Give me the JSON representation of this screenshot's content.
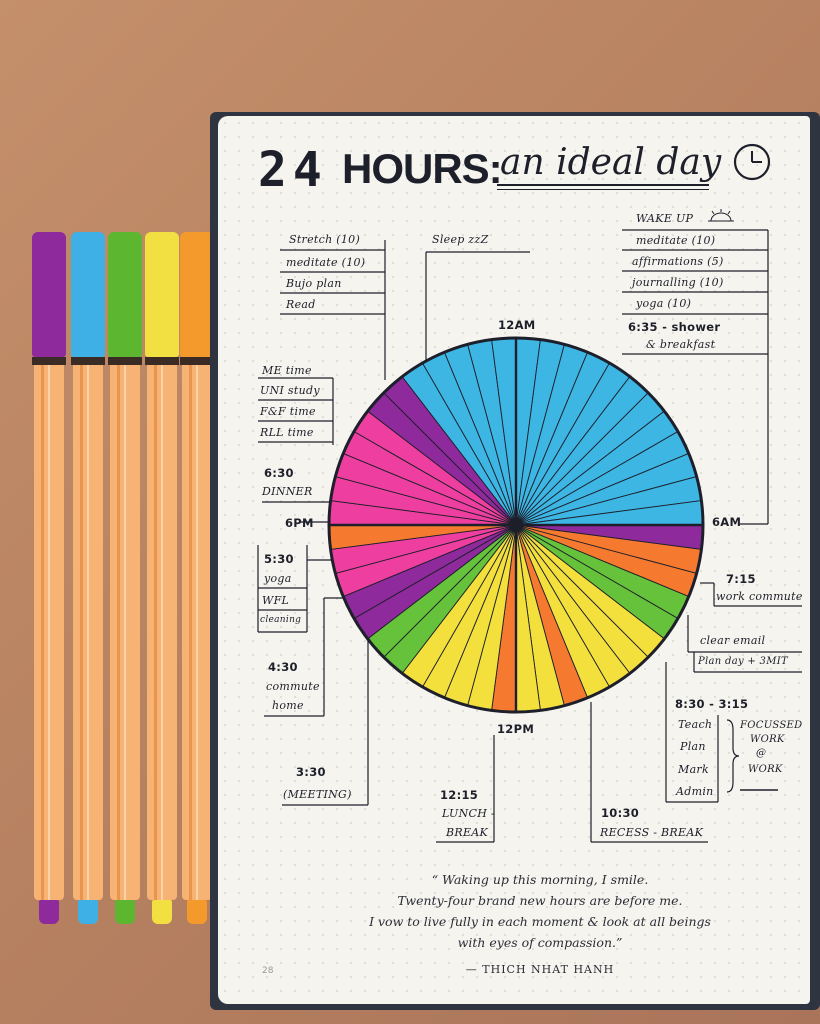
{
  "pens": [
    {
      "name": "purple",
      "color": "#8e2a9c"
    },
    {
      "name": "blue",
      "color": "#3fb0e6"
    },
    {
      "name": "green",
      "color": "#5cb630"
    },
    {
      "name": "yellow",
      "color": "#f2e042"
    },
    {
      "name": "orange",
      "color": "#f49a2c"
    }
  ],
  "title": {
    "number": "24",
    "hours": "HOURS:",
    "subtitle": "an ideal day",
    "icon": "clock-icon"
  },
  "hour_labels": {
    "midnight": "12AM",
    "morning": "6AM",
    "noon": "12PM",
    "evening": "6PM"
  },
  "chart_data": {
    "type": "pie",
    "slices_clockwise_from_midnight": [
      {
        "color": "#3db6e4",
        "count": 12
      },
      {
        "color": "#8e2a9c",
        "count": 1
      },
      {
        "color": "#f57a2f",
        "count": 2
      },
      {
        "color": "#66c23a",
        "count": 2
      },
      {
        "color": "#f3e03d",
        "count": 4
      },
      {
        "color": "#f57a2f",
        "count": 1
      },
      {
        "color": "#f3e03d",
        "count": 2
      },
      {
        "color": "#f57a2f",
        "count": 1
      },
      {
        "color": "#f3e03d",
        "count": 4
      },
      {
        "color": "#66c23a",
        "count": 2
      },
      {
        "color": "#8e2a9c",
        "count": 2
      },
      {
        "color": "#ee3fa0",
        "count": 2
      },
      {
        "color": "#f57a2f",
        "count": 1
      },
      {
        "color": "#ee3fa0",
        "count": 5
      },
      {
        "color": "#8e2a9c",
        "count": 2
      },
      {
        "color": "#3db6e4",
        "count": 5
      }
    ]
  },
  "left_top": [
    "Stretch (10)",
    "meditate (10)",
    "Bujo plan",
    "Read"
  ],
  "sleep": "Sleep zzZ",
  "wake": {
    "title": "WAKE UP",
    "items": [
      "meditate (10)",
      "affirmations (5)",
      "journalling (10)",
      "yoga (10)"
    ],
    "shower_1": "6:35 - shower",
    "shower_2": "& breakfast"
  },
  "me_time": [
    "ME time",
    "UNI study",
    "F&F time",
    "RLL time"
  ],
  "dinner": {
    "time": "6:30",
    "label": "DINNER"
  },
  "yoga_block": {
    "time": "5:30",
    "items": [
      "yoga",
      "WFL",
      "cleaning"
    ]
  },
  "commute_home": {
    "time": "4:30",
    "line1": "commute",
    "line2": "home"
  },
  "meeting": {
    "time": "3:30",
    "label": "(MEETING)"
  },
  "lunch": {
    "time": "12:15",
    "line1": "LUNCH -",
    "line2": "BREAK"
  },
  "recess": {
    "time": "10:30",
    "label": "RECESS - BREAK"
  },
  "work_commute": {
    "time": "7:15",
    "label": "work commute"
  },
  "email": {
    "line1": "clear email",
    "line2": "Plan day + 3MIT"
  },
  "work": {
    "time": "8:30 - 3:15",
    "items": [
      "Teach",
      "Plan",
      "Mark",
      "Admin"
    ],
    "focus_1": "FOCUSSED",
    "focus_2": "WORK",
    "focus_3": "@",
    "focus_4": "WORK"
  },
  "quote": {
    "line1": "“ Waking up this morning, I smile.",
    "line2": "Twenty-four brand new hours are before me.",
    "line3": "I vow to live fully in each moment & look at all beings",
    "line4": "with eyes of compassion.”",
    "author": "— THICH NHAT HANH"
  },
  "page_number": "28"
}
